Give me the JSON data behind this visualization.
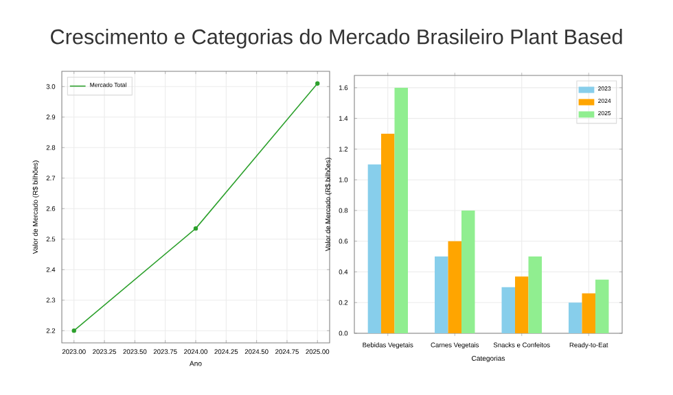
{
  "chart_data": [
    {
      "type": "line",
      "title": "Crescimento e Categorias do Mercado Brasileiro Plant Based",
      "xlabel": "Ano",
      "ylabel": "Valor de Mercado (R$ bilhões)",
      "x": [
        2023,
        2024,
        2025
      ],
      "series": [
        {
          "name": "Mercado Total",
          "color": "#2ca02c",
          "values": [
            2.2,
            2.535,
            3.01
          ]
        }
      ],
      "xlim": [
        2022.9,
        2025.1
      ],
      "ylim": [
        2.16,
        3.05
      ],
      "xticks": [
        {
          "value": 2023,
          "label": "2023.00"
        },
        {
          "value": 2023.25,
          "label": "2023.25"
        },
        {
          "value": 2023.5,
          "label": "2023.50"
        },
        {
          "value": 2023.75,
          "label": "2023.75"
        },
        {
          "value": 2024,
          "label": "2024.00"
        },
        {
          "value": 2024.25,
          "label": "2024.25"
        },
        {
          "value": 2024.5,
          "label": "2024.50"
        },
        {
          "value": 2024.75,
          "label": "2024.75"
        },
        {
          "value": 2025,
          "label": "2025.00"
        }
      ],
      "yticks": [
        2.2,
        2.3,
        2.4,
        2.5,
        2.6,
        2.7,
        2.8,
        2.9,
        {
          "value": 3,
          "label": "3.0"
        }
      ],
      "grid": true,
      "legend": "top left",
      "marker": "circle"
    },
    {
      "type": "bar",
      "xlabel": "Categorias",
      "ylabel": "Valor de Mercado (R$ bilhões)",
      "categories": [
        "Bebidas Vegetais",
        "Carnes Vegetais",
        "Snacks e Confeitos",
        "Ready-to-Eat"
      ],
      "series": [
        {
          "name": "2023",
          "color": "#87ceeb",
          "values": [
            1.1,
            0.5,
            0.3,
            0.2
          ]
        },
        {
          "name": "2024",
          "color": "#ffa500",
          "values": [
            1.3,
            0.6,
            0.37,
            0.26
          ]
        },
        {
          "name": "2025",
          "color": "#90ee90",
          "values": [
            1.6,
            0.8,
            0.5,
            0.35
          ]
        }
      ],
      "ylim": [
        0,
        1.68
      ],
      "yticks": [
        {
          "value": 0,
          "label": "0.0"
        },
        0.2,
        0.4,
        0.6,
        0.8,
        {
          "value": 1,
          "label": "1.0"
        },
        1.2,
        1.4,
        1.6
      ],
      "grid": true,
      "legend": "top right"
    }
  ]
}
